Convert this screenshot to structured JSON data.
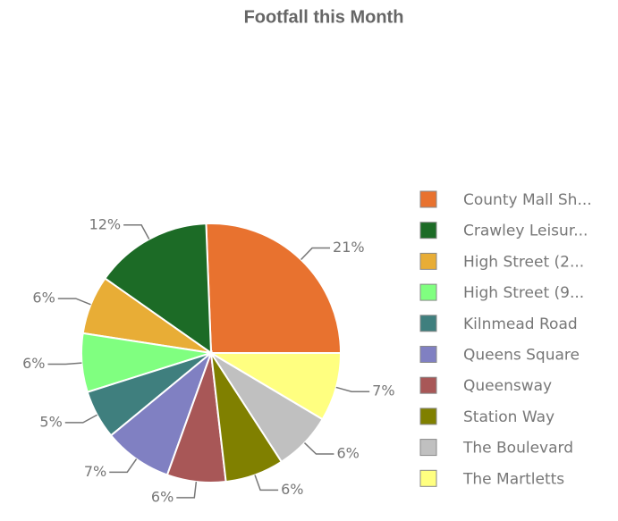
{
  "chart_data": {
    "type": "pie",
    "title": "Footfall this Month",
    "categories": [
      "County Mall Sh...",
      "Crawley Leisur...",
      "High Street (2...",
      "High Street (9...",
      "Kilnmead Road",
      "Queens Square",
      "Queensway",
      "Station Way",
      "The Boulevard",
      "The Martletts"
    ],
    "values": [
      21,
      12,
      6,
      6,
      5,
      7,
      6,
      6,
      6,
      7
    ],
    "value_labels": [
      "21%",
      "12%",
      "6%",
      "6%",
      "5%",
      "7%",
      "6%",
      "6%",
      "6%",
      "7%"
    ],
    "colors": [
      "#e8722f",
      "#1c6b26",
      "#e8ad36",
      "#80ff80",
      "#3f7f7e",
      "#8080c2",
      "#a85757",
      "#808000",
      "#c0c0c0",
      "#ffff80"
    ],
    "legend": "right"
  }
}
